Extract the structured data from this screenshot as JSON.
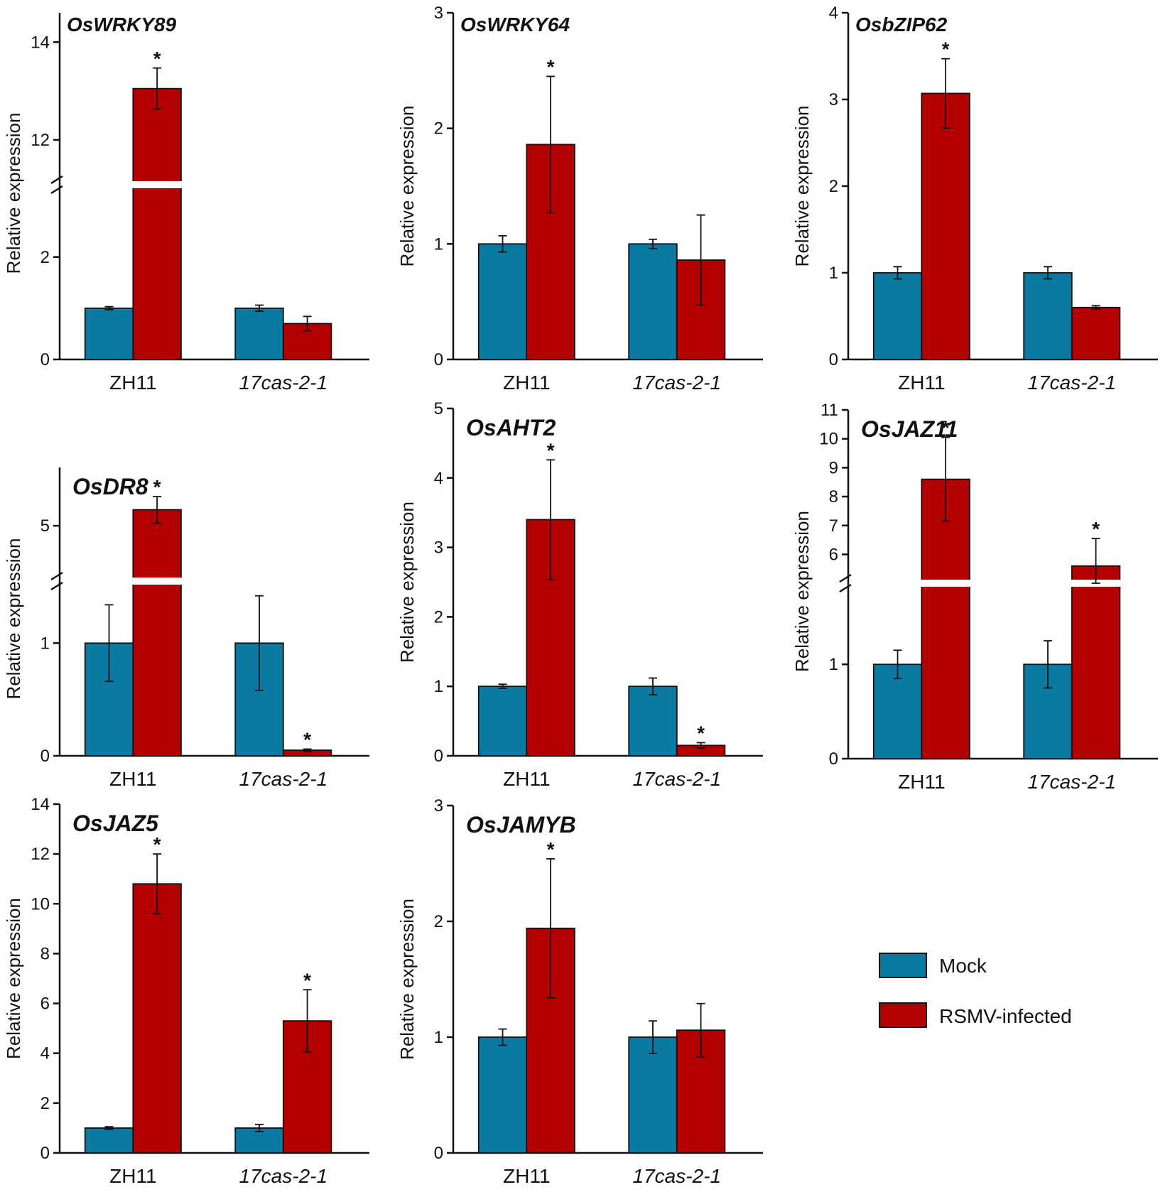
{
  "colors": {
    "mock": "#0b7aa3",
    "infected": "#b30000",
    "axis": "#111111"
  },
  "legend": {
    "mock_label": "Mock",
    "infected_label": "RSMV-infected"
  },
  "chart_data": [
    {
      "type": "bar",
      "title": "OsWRKY89",
      "ylabel": "Relative expression",
      "categories": [
        "ZH11",
        "17cas-2-1"
      ],
      "italic_categories": [
        false,
        true
      ],
      "series": [
        {
          "name": "Mock",
          "values": [
            1.0,
            1.0
          ],
          "errors": [
            0.03,
            0.06
          ],
          "significant": [
            false,
            false
          ]
        },
        {
          "name": "RSMV-infected",
          "values": [
            13.05,
            0.7
          ],
          "errors": [
            0.42,
            0.14
          ],
          "significant": [
            true,
            false
          ]
        }
      ],
      "axis_break": {
        "lower": [
          0,
          3.3
        ],
        "lower_ticks": [
          0,
          2
        ],
        "upper": [
          11.2,
          14.6
        ],
        "upper_ticks": [
          12,
          14
        ]
      }
    },
    {
      "type": "bar",
      "title": "OsWRKY64",
      "ylabel": "Relative expression",
      "categories": [
        "ZH11",
        "17cas-2-1"
      ],
      "italic_categories": [
        false,
        true
      ],
      "ylim": [
        0,
        3
      ],
      "yticks": [
        0,
        1,
        2,
        3
      ],
      "series": [
        {
          "name": "Mock",
          "values": [
            1.0,
            1.0
          ],
          "errors": [
            0.07,
            0.04
          ],
          "significant": [
            false,
            false
          ]
        },
        {
          "name": "RSMV-infected",
          "values": [
            1.86,
            0.86
          ],
          "errors": [
            0.59,
            0.39
          ],
          "significant": [
            true,
            false
          ]
        }
      ]
    },
    {
      "type": "bar",
      "title": "OsbZIP62",
      "ylabel": "Relative expression",
      "categories": [
        "ZH11",
        "17cas-2-1"
      ],
      "italic_categories": [
        false,
        true
      ],
      "ylim": [
        0,
        4
      ],
      "yticks": [
        0,
        1,
        2,
        3,
        4
      ],
      "series": [
        {
          "name": "Mock",
          "values": [
            1.0,
            1.0
          ],
          "errors": [
            0.07,
            0.07
          ],
          "significant": [
            false,
            false
          ]
        },
        {
          "name": "RSMV-infected",
          "values": [
            3.07,
            0.6
          ],
          "errors": [
            0.4,
            0.02
          ],
          "significant": [
            true,
            false
          ]
        }
      ]
    },
    {
      "type": "bar",
      "title": "OsDR8",
      "ylabel": "Relative expression",
      "categories": [
        "ZH11",
        "17cas-2-1"
      ],
      "italic_categories": [
        false,
        true
      ],
      "series": [
        {
          "name": "Mock",
          "values": [
            1.0,
            1.0
          ],
          "errors": [
            0.34,
            0.42
          ],
          "significant": [
            false,
            false
          ]
        },
        {
          "name": "RSMV-infected",
          "values": [
            5.55,
            0.05
          ],
          "errors": [
            0.45,
            0.01
          ],
          "significant": [
            true,
            true
          ]
        }
      ],
      "axis_break": {
        "lower": [
          0,
          1.5
        ],
        "lower_ticks": [
          0,
          1
        ],
        "upper": [
          3.3,
          7.0
        ],
        "upper_ticks": [
          5
        ]
      }
    },
    {
      "type": "bar",
      "title": "OsAHT2",
      "ylabel": "Relative expression",
      "categories": [
        "ZH11",
        "17cas-2-1"
      ],
      "italic_categories": [
        false,
        true
      ],
      "ylim": [
        0,
        5
      ],
      "yticks": [
        0,
        1,
        2,
        3,
        4,
        5
      ],
      "series": [
        {
          "name": "Mock",
          "values": [
            1.0,
            1.0
          ],
          "errors": [
            0.03,
            0.12
          ],
          "significant": [
            false,
            false
          ]
        },
        {
          "name": "RSMV-infected",
          "values": [
            3.4,
            0.15
          ],
          "errors": [
            0.86,
            0.04
          ],
          "significant": [
            true,
            true
          ]
        }
      ]
    },
    {
      "type": "bar",
      "title": "OsJAZ11",
      "ylabel": "Relative expression",
      "categories": [
        "ZH11",
        "17cas-2-1"
      ],
      "italic_categories": [
        false,
        true
      ],
      "series": [
        {
          "name": "Mock",
          "values": [
            1.0,
            1.0
          ],
          "errors": [
            0.15,
            0.25
          ],
          "significant": [
            false,
            false
          ]
        },
        {
          "name": "RSMV-infected",
          "values": [
            8.6,
            5.6
          ],
          "errors": [
            1.45,
            0.95
          ],
          "significant": [
            true,
            true
          ]
        }
      ],
      "axis_break": {
        "lower": [
          0,
          1.8
        ],
        "lower_ticks": [
          0,
          1
        ],
        "upper": [
          5.2,
          11
        ],
        "upper_ticks": [
          6,
          7,
          8,
          9,
          10,
          11
        ]
      }
    },
    {
      "type": "bar",
      "title": "OsJAZ5",
      "ylabel": "Relative expression",
      "categories": [
        "ZH11",
        "17cas-2-1"
      ],
      "italic_categories": [
        false,
        true
      ],
      "ylim": [
        0,
        14
      ],
      "yticks": [
        0,
        2,
        4,
        6,
        8,
        10,
        12,
        14
      ],
      "series": [
        {
          "name": "Mock",
          "values": [
            1.0,
            1.0
          ],
          "errors": [
            0.05,
            0.14
          ],
          "significant": [
            false,
            false
          ]
        },
        {
          "name": "RSMV-infected",
          "values": [
            10.8,
            5.3
          ],
          "errors": [
            1.2,
            1.25
          ],
          "significant": [
            true,
            true
          ]
        }
      ]
    },
    {
      "type": "bar",
      "title": "OsJAMYB",
      "ylabel": "Relative expression",
      "categories": [
        "ZH11",
        "17cas-2-1"
      ],
      "italic_categories": [
        false,
        true
      ],
      "ylim": [
        0,
        3
      ],
      "yticks": [
        0,
        1,
        2,
        3
      ],
      "series": [
        {
          "name": "Mock",
          "values": [
            1.0,
            1.0
          ],
          "errors": [
            0.07,
            0.14
          ],
          "significant": [
            false,
            false
          ]
        },
        {
          "name": "RSMV-infected",
          "values": [
            1.94,
            1.06
          ],
          "errors": [
            0.6,
            0.23
          ],
          "significant": [
            true,
            false
          ]
        }
      ]
    }
  ]
}
